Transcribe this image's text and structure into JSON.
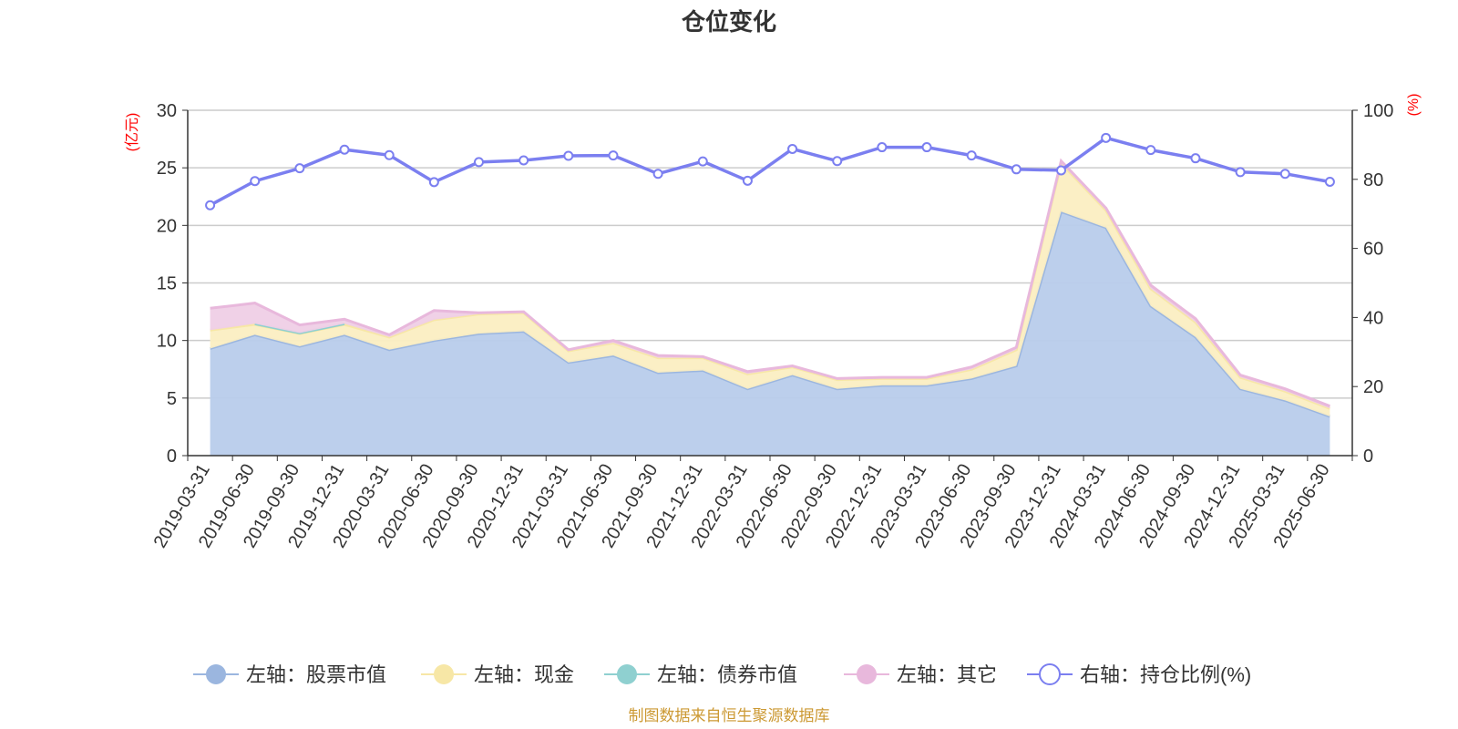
{
  "chart_data": {
    "type": "area",
    "title": "仓位变化",
    "source_note": "制图数据来自恒生聚源数据库",
    "left_axis_label": "(亿元)",
    "right_axis_label": "(%)",
    "left_ylim": [
      0,
      30
    ],
    "left_ticks": [
      0,
      5,
      10,
      15,
      20,
      25,
      30
    ],
    "right_ylim": [
      0,
      100
    ],
    "right_ticks": [
      0,
      20,
      40,
      60,
      80,
      100
    ],
    "grid": true,
    "legend_position": "bottom",
    "categories": [
      "2019-03-31",
      "2019-06-30",
      "2019-09-30",
      "2019-12-31",
      "2020-03-31",
      "2020-06-30",
      "2020-09-30",
      "2020-12-31",
      "2021-03-31",
      "2021-06-30",
      "2021-09-30",
      "2021-12-31",
      "2022-03-31",
      "2022-06-30",
      "2022-09-30",
      "2022-12-31",
      "2023-03-31",
      "2023-06-30",
      "2023-09-30",
      "2023-12-31",
      "2024-03-31",
      "2024-06-30",
      "2024-09-30",
      "2024-12-31",
      "2025-03-31",
      "2025-06-30"
    ],
    "series": [
      {
        "name": "左轴：股票市值",
        "axis": "left",
        "kind": "area",
        "color": "#9bb6df",
        "fill": "#b8cceb",
        "values": [
          9.3,
          10.5,
          9.5,
          10.5,
          9.2,
          10.0,
          10.6,
          10.8,
          8.1,
          8.7,
          7.2,
          7.4,
          5.8,
          7.0,
          5.8,
          6.1,
          6.1,
          6.7,
          7.8,
          21.2,
          19.8,
          13.0,
          10.3,
          5.8,
          4.8,
          3.4
        ]
      },
      {
        "name": "左轴：现金",
        "axis": "left",
        "kind": "area",
        "color": "#f7e7a6",
        "fill": "#fbeec2",
        "values": [
          1.6,
          0.9,
          1.1,
          0.9,
          1.1,
          1.8,
          1.7,
          1.6,
          1.0,
          1.1,
          1.3,
          1.1,
          1.3,
          0.7,
          0.8,
          0.6,
          0.6,
          0.8,
          1.4,
          4.2,
          1.5,
          1.5,
          1.3,
          1.0,
          0.8,
          0.7
        ]
      },
      {
        "name": "左轴：债券市值",
        "axis": "left",
        "kind": "area",
        "color": "#8fd0d0",
        "fill": "#a9dbdb",
        "values": [
          null,
          0.05,
          0.05,
          0.05,
          null,
          null,
          null,
          null,
          null,
          null,
          null,
          null,
          null,
          null,
          null,
          null,
          null,
          null,
          null,
          null,
          null,
          null,
          null,
          null,
          null,
          null
        ]
      },
      {
        "name": "左轴：其它",
        "axis": "left",
        "kind": "area",
        "color": "#e8b8dc",
        "fill": "#efcfe6",
        "values": [
          1.9,
          1.8,
          0.7,
          0.4,
          0.2,
          0.8,
          0.1,
          0.1,
          0.1,
          0.2,
          0.2,
          0.1,
          0.2,
          0.1,
          0.1,
          0.1,
          0.1,
          0.2,
          0.2,
          0.2,
          0.2,
          0.3,
          0.3,
          0.2,
          0.2,
          0.2
        ]
      },
      {
        "name": "右轴：持仓比例(%)",
        "axis": "right",
        "kind": "line",
        "color": "#7b7ff0",
        "values": [
          72.5,
          79.5,
          83.2,
          88.6,
          87.0,
          79.2,
          85.0,
          85.5,
          86.8,
          86.9,
          81.6,
          85.2,
          79.6,
          88.8,
          85.3,
          89.3,
          89.3,
          86.9,
          82.9,
          82.6,
          92.0,
          88.5,
          86.1,
          82.1,
          81.6,
          79.3
        ]
      }
    ]
  }
}
